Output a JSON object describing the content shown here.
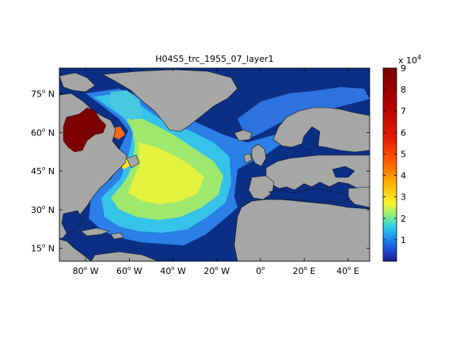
{
  "title": "H04S5_trc_1955_07_layer1",
  "map": {
    "lon_range": [
      -92,
      50
    ],
    "lat_range": [
      10,
      85
    ],
    "land_color": "#a6a6a6",
    "ocean_low_color": "#0a2a7a",
    "x_ticks": [
      {
        "value": -80,
        "label": "80",
        "hemi": "W"
      },
      {
        "value": -60,
        "label": "60",
        "hemi": "W"
      },
      {
        "value": -40,
        "label": "40",
        "hemi": "W"
      },
      {
        "value": -20,
        "label": "20",
        "hemi": "W"
      },
      {
        "value": 0,
        "label": "0",
        "hemi": ""
      },
      {
        "value": 20,
        "label": "20",
        "hemi": "E"
      },
      {
        "value": 40,
        "label": "40",
        "hemi": "E"
      }
    ],
    "y_ticks": [
      {
        "value": 75,
        "label": "75",
        "hemi": "N"
      },
      {
        "value": 60,
        "label": "60",
        "hemi": "N"
      },
      {
        "value": 45,
        "label": "45",
        "hemi": "N"
      },
      {
        "value": 30,
        "label": "30",
        "hemi": "N"
      },
      {
        "value": 15,
        "label": "15",
        "hemi": "N"
      }
    ]
  },
  "colorbar": {
    "exponent_label": "x 10",
    "exponent_power": "4",
    "range": [
      0,
      9
    ],
    "ticks": [
      "1",
      "2",
      "3",
      "4",
      "5",
      "6",
      "7",
      "8",
      "9"
    ]
  }
}
